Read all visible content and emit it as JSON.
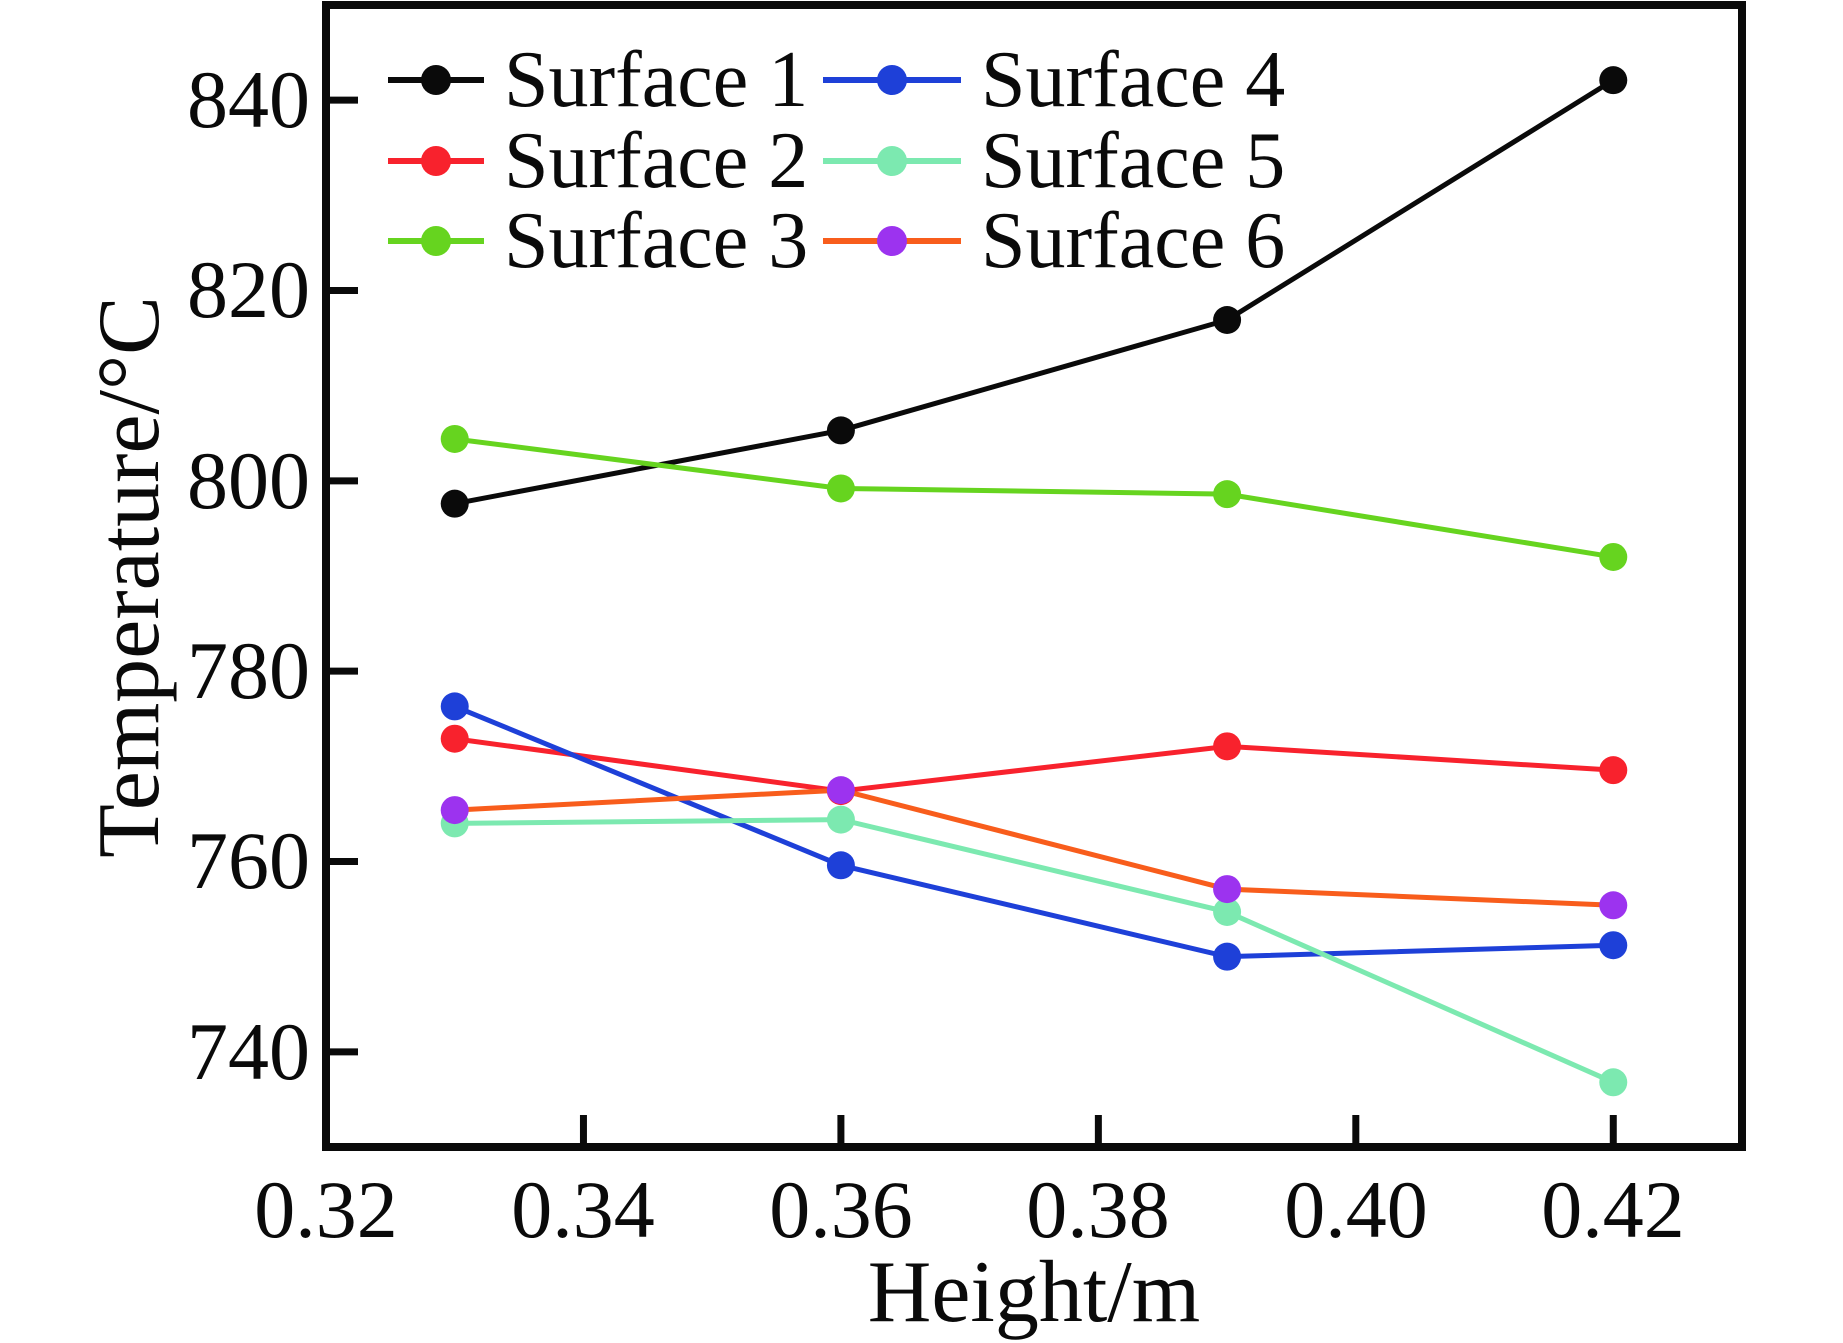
{
  "chart_data": {
    "type": "line",
    "title": "",
    "xlabel": "Height/m",
    "ylabel": "Temperature/°C",
    "x": [
      0.33,
      0.36,
      0.39,
      0.42
    ],
    "series": [
      {
        "name": "Surface 1",
        "color": "#0a0a0a",
        "marker_color": "#0a0a0a",
        "values": [
          797.6,
          805.3,
          816.9,
          842.1
        ]
      },
      {
        "name": "Surface 2",
        "color": "#f8222d",
        "marker_color": "#f8222d",
        "values": [
          772.9,
          767.4,
          772.1,
          769.6
        ]
      },
      {
        "name": "Surface 3",
        "color": "#66d41f",
        "marker_color": "#66d41f",
        "values": [
          804.4,
          799.2,
          798.6,
          792.0
        ]
      },
      {
        "name": "Surface 4",
        "color": "#1e40d8",
        "marker_color": "#1e40d8",
        "values": [
          776.3,
          759.6,
          750.0,
          751.2
        ]
      },
      {
        "name": "Surface 5",
        "color": "#7ce9b0",
        "marker_color": "#7ce9b0",
        "values": [
          764.0,
          764.4,
          754.7,
          736.8
        ]
      },
      {
        "name": "Surface 6",
        "color": "#f85d1c",
        "marker_color": "#9c33ef",
        "values": [
          765.4,
          767.5,
          757.1,
          755.4
        ]
      }
    ],
    "xlim": [
      0.32,
      0.43
    ],
    "ylim": [
      730,
      850
    ],
    "xticks": [
      0.32,
      0.34,
      0.36,
      0.38,
      0.4,
      0.42
    ],
    "xtick_labels": [
      "0.32",
      "0.34",
      "0.36",
      "0.38",
      "0.40",
      "0.42"
    ],
    "yticks": [
      740,
      760,
      780,
      800,
      820,
      840
    ],
    "ytick_labels": [
      "740",
      "760",
      "780",
      "800",
      "820",
      "840"
    ],
    "grid": false,
    "legend_position": "top-left-inside",
    "legend_columns": 2
  }
}
